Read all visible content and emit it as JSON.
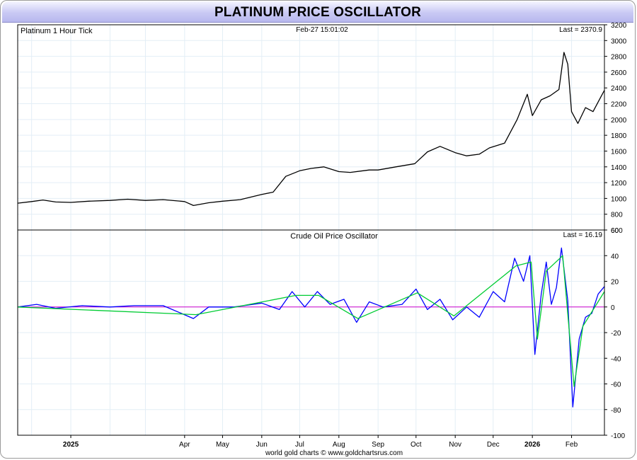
{
  "title": "PLATINUM PRICE OSCILLATOR",
  "footer": "world gold charts © www.goldchartsrus.com",
  "chart_data": [
    {
      "type": "line",
      "label": "Platinum 1 Hour Tick",
      "timestamp": "Feb-27  15:01:02",
      "last": "Last = 2370.9",
      "ylim": [
        600,
        3200
      ],
      "yticks": [
        600,
        800,
        1000,
        1200,
        1400,
        1600,
        1800,
        2000,
        2200,
        2400,
        2600,
        2800,
        3000,
        3200
      ],
      "series": [
        {
          "color": "#000000",
          "points": [
            [
              "2024-11-20",
              940
            ],
            [
              "2024-12-01",
              960
            ],
            [
              "2024-12-10",
              980
            ],
            [
              "2024-12-20",
              955
            ],
            [
              "2025-01-01",
              950
            ],
            [
              "2025-01-15",
              965
            ],
            [
              "2025-02-01",
              975
            ],
            [
              "2025-02-15",
              990
            ],
            [
              "2025-03-01",
              975
            ],
            [
              "2025-03-15",
              985
            ],
            [
              "2025-04-01",
              960
            ],
            [
              "2025-04-08",
              910
            ],
            [
              "2025-04-20",
              945
            ],
            [
              "2025-05-01",
              965
            ],
            [
              "2025-05-15",
              985
            ],
            [
              "2025-06-01",
              1050
            ],
            [
              "2025-06-10",
              1080
            ],
            [
              "2025-06-20",
              1280
            ],
            [
              "2025-07-01",
              1350
            ],
            [
              "2025-07-10",
              1380
            ],
            [
              "2025-07-20",
              1400
            ],
            [
              "2025-08-01",
              1340
            ],
            [
              "2025-08-10",
              1330
            ],
            [
              "2025-08-25",
              1360
            ],
            [
              "2025-09-01",
              1360
            ],
            [
              "2025-09-15",
              1400
            ],
            [
              "2025-09-30",
              1440
            ],
            [
              "2025-10-10",
              1590
            ],
            [
              "2025-10-20",
              1660
            ],
            [
              "2025-11-01",
              1580
            ],
            [
              "2025-11-10",
              1540
            ],
            [
              "2025-11-20",
              1560
            ],
            [
              "2025-11-28",
              1640
            ],
            [
              "2025-12-10",
              1700
            ],
            [
              "2025-12-20",
              2000
            ],
            [
              "2025-12-28",
              2320
            ],
            [
              "2026-01-01",
              2050
            ],
            [
              "2026-01-08",
              2250
            ],
            [
              "2026-01-15",
              2300
            ],
            [
              "2026-01-22",
              2380
            ],
            [
              "2026-01-26",
              2850
            ],
            [
              "2026-01-29",
              2700
            ],
            [
              "2026-02-01",
              2100
            ],
            [
              "2026-02-06",
              1950
            ],
            [
              "2026-02-12",
              2150
            ],
            [
              "2026-02-18",
              2100
            ],
            [
              "2026-02-24",
              2280
            ],
            [
              "2026-02-27",
              2371
            ]
          ]
        }
      ]
    },
    {
      "type": "line",
      "label": "Crude Oil Price Oscillator",
      "last": "Last = 16.19",
      "ylim": [
        -100,
        60
      ],
      "yticks": [
        -100,
        -80,
        -60,
        -40,
        -20,
        0,
        20,
        40,
        60
      ],
      "zero_line_color": "#cc00cc",
      "series": [
        {
          "color": "#0000ff",
          "points": [
            [
              "2024-11-20",
              0
            ],
            [
              "2024-12-05",
              2
            ],
            [
              "2024-12-20",
              -1
            ],
            [
              "2025-01-10",
              1
            ],
            [
              "2025-02-01",
              0
            ],
            [
              "2025-02-20",
              1
            ],
            [
              "2025-03-15",
              1
            ],
            [
              "2025-04-08",
              -9
            ],
            [
              "2025-04-20",
              0
            ],
            [
              "2025-05-10",
              0
            ],
            [
              "2025-06-01",
              3
            ],
            [
              "2025-06-15",
              -2
            ],
            [
              "2025-06-25",
              12
            ],
            [
              "2025-07-05",
              0
            ],
            [
              "2025-07-15",
              12
            ],
            [
              "2025-07-25",
              2
            ],
            [
              "2025-08-05",
              6
            ],
            [
              "2025-08-15",
              -12
            ],
            [
              "2025-08-25",
              4
            ],
            [
              "2025-09-05",
              0
            ],
            [
              "2025-09-20",
              2
            ],
            [
              "2025-10-01",
              14
            ],
            [
              "2025-10-10",
              -2
            ],
            [
              "2025-10-20",
              6
            ],
            [
              "2025-10-30",
              -10
            ],
            [
              "2025-11-10",
              0
            ],
            [
              "2025-11-20",
              -8
            ],
            [
              "2025-12-01",
              12
            ],
            [
              "2025-12-10",
              4
            ],
            [
              "2025-12-18",
              38
            ],
            [
              "2025-12-25",
              20
            ],
            [
              "2025-12-30",
              40
            ],
            [
              "2026-01-03",
              -37
            ],
            [
              "2026-01-08",
              10
            ],
            [
              "2026-01-12",
              35
            ],
            [
              "2026-01-16",
              2
            ],
            [
              "2026-01-20",
              15
            ],
            [
              "2026-01-24",
              46
            ],
            [
              "2026-01-29",
              5
            ],
            [
              "2026-02-02",
              -78
            ],
            [
              "2026-02-07",
              -25
            ],
            [
              "2026-02-12",
              -8
            ],
            [
              "2026-02-17",
              -5
            ],
            [
              "2026-02-22",
              10
            ],
            [
              "2026-02-27",
              16
            ]
          ]
        },
        {
          "color": "#00cc33",
          "points": [
            [
              "2024-11-20",
              0
            ],
            [
              "2025-04-10",
              -6
            ],
            [
              "2025-06-28",
              9
            ],
            [
              "2025-07-16",
              9
            ],
            [
              "2025-08-16",
              -9
            ],
            [
              "2025-10-02",
              11
            ],
            [
              "2025-10-31",
              -7
            ],
            [
              "2025-12-19",
              32
            ],
            [
              "2025-12-31",
              35
            ],
            [
              "2026-01-05",
              -25
            ],
            [
              "2026-01-12",
              28
            ],
            [
              "2026-01-25",
              40
            ],
            [
              "2026-02-03",
              -62
            ],
            [
              "2026-02-10",
              -15
            ],
            [
              "2026-02-27",
              12
            ]
          ]
        }
      ]
    }
  ],
  "x_axis": {
    "start": "2024-11-20",
    "end": "2026-02-27",
    "labels": [
      {
        "text": "2025",
        "date": "2025-01-01",
        "bold": true
      },
      {
        "text": "Apr",
        "date": "2025-04-01"
      },
      {
        "text": "May",
        "date": "2025-05-01"
      },
      {
        "text": "Jun",
        "date": "2025-06-01"
      },
      {
        "text": "Jul",
        "date": "2025-07-01"
      },
      {
        "text": "Aug",
        "date": "2025-08-01"
      },
      {
        "text": "Sep",
        "date": "2025-09-01"
      },
      {
        "text": "Oct",
        "date": "2025-10-01"
      },
      {
        "text": "Nov",
        "date": "2025-11-01"
      },
      {
        "text": "Dec",
        "date": "2025-12-01"
      },
      {
        "text": "2026",
        "date": "2026-01-01",
        "bold": true
      },
      {
        "text": "Feb",
        "date": "2026-02-01"
      }
    ],
    "gridline_dates": [
      "2024-12-01",
      "2025-01-01",
      "2025-02-01",
      "2025-03-01",
      "2025-04-01",
      "2025-05-01",
      "2025-06-01",
      "2025-07-01",
      "2025-08-01",
      "2025-09-01",
      "2025-10-01",
      "2025-11-01",
      "2025-12-01",
      "2026-01-01",
      "2026-02-01"
    ]
  },
  "colors": {
    "grid": "#e3eef6",
    "frame": "#000000",
    "title_bg": "#c9c9f4"
  }
}
